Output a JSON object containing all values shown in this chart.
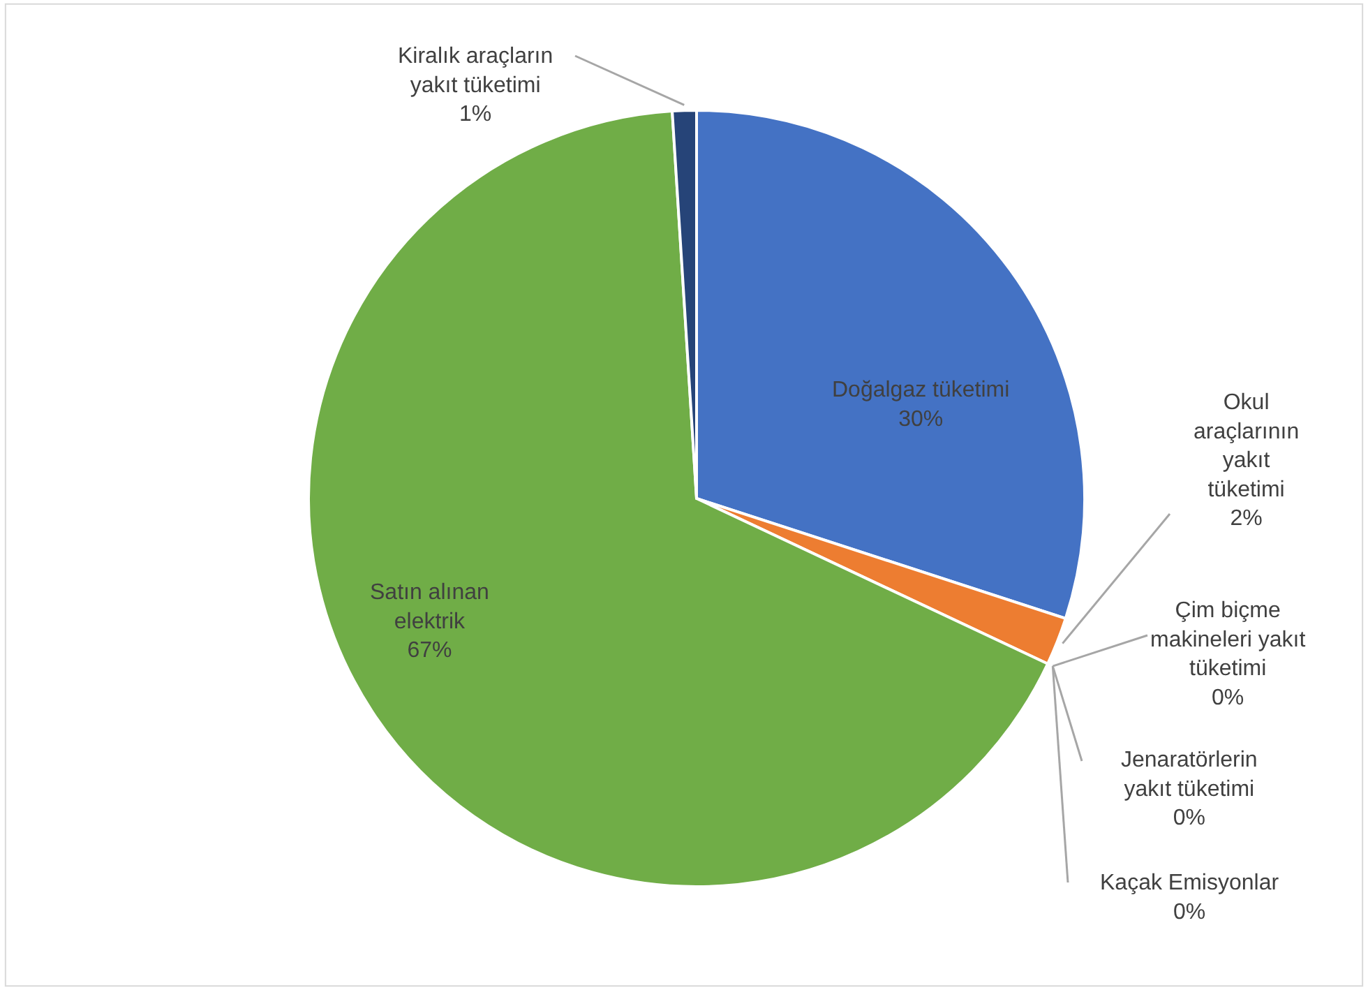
{
  "chart_data": {
    "type": "pie",
    "categories": [
      "Doğalgaz tüketimi",
      "Okul araçlarının yakıt tüketimi",
      "Çim biçme makineleri yakıt tüketimi",
      "Jenaratörlerin yakıt tüketimi",
      "Kaçak Emisyonlar",
      "Satın alınan elektrik",
      "Kiralık araçların yakıt tüketimi"
    ],
    "values": [
      30,
      2,
      0,
      0,
      0,
      67,
      1
    ],
    "colors": [
      "#4472c4",
      "#ed7d31",
      "#a5a5a5",
      "#ffc000",
      "#5b9bd5",
      "#70ad47",
      "#264478"
    ],
    "value_labels": [
      "30%",
      "2%",
      "0%",
      "0%",
      "0%",
      "67%",
      "1%"
    ],
    "legend": false
  }
}
